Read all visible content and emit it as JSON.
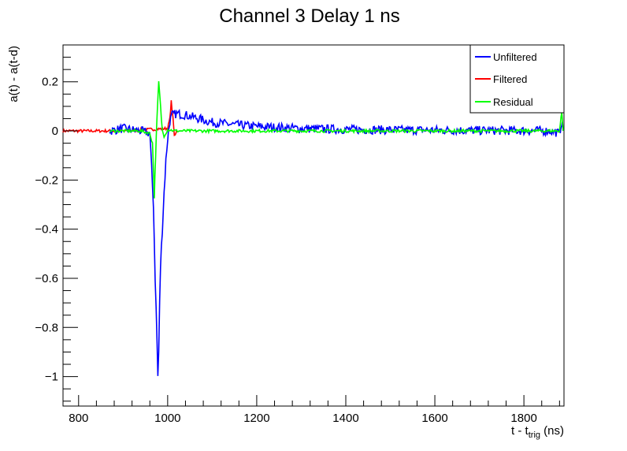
{
  "colors": {
    "unfiltered": "#0000ff",
    "filtered": "#ff0000",
    "residual": "#00ff00",
    "axis": "#000000",
    "background": "#ffffff"
  },
  "chart_data": {
    "type": "line",
    "title": "Channel 3 Delay 1 ns",
    "ylabel": "a(t) - a(t-d)",
    "xlabel_main": "t - t",
    "xlabel_sub": "trig",
    "xlabel_unit": " (ns)",
    "xlim": [
      765,
      1890
    ],
    "ylim": [
      -1.12,
      0.35
    ],
    "grid": false,
    "legend_position": "top-right",
    "x_ticks": [
      800,
      1000,
      1200,
      1400,
      1600,
      1800
    ],
    "x_tick_labels": [
      "800",
      "1000",
      "1200",
      "1400",
      "1600",
      "1800"
    ],
    "y_ticks": [
      0.2,
      0,
      -0.2,
      -0.4,
      -0.6,
      -0.8,
      -1
    ],
    "y_tick_labels": [
      "0.2",
      "0",
      "−0.2",
      "−0.4",
      "−0.6",
      "−0.8",
      "−1"
    ],
    "series": [
      {
        "name": "Unfiltered",
        "color": "#0000ff",
        "x": [
          870,
          900,
          940,
          960,
          968,
          972,
          976,
          978,
          980,
          982,
          984,
          988,
          992,
          996,
          1000,
          1005,
          1010,
          1020,
          1040,
          1060,
          1080,
          1100,
          1150,
          1200,
          1300,
          1400,
          1500,
          1600,
          1700,
          1800,
          1860,
          1880,
          1885,
          1888
        ],
        "y": [
          0.0,
          0.01,
          0.0,
          -0.01,
          -0.3,
          -0.6,
          -0.85,
          -1.0,
          -0.9,
          -0.7,
          -0.55,
          -0.4,
          -0.25,
          -0.12,
          -0.03,
          0.04,
          0.065,
          0.07,
          0.065,
          0.055,
          0.045,
          0.035,
          0.025,
          0.018,
          0.01,
          0.006,
          0.004,
          0.003,
          0.002,
          0.001,
          0.0,
          -0.01,
          0.04,
          0.0
        ]
      },
      {
        "name": "Filtered",
        "color": "#ff0000",
        "x": [
          765,
          800,
          850,
          900,
          950,
          1000,
          1005,
          1008,
          1012,
          1015,
          1020
        ],
        "y": [
          0.0,
          0.0,
          0.0,
          0.0,
          0.005,
          0.01,
          0.05,
          0.12,
          0.05,
          -0.02,
          0.0
        ]
      },
      {
        "name": "Residual",
        "color": "#00ff00",
        "x": [
          870,
          940,
          960,
          966,
          970,
          973,
          976,
          980,
          984,
          988,
          992,
          1000,
          1020,
          1100,
          1200,
          1400,
          1600,
          1800,
          1880,
          1885,
          1888
        ],
        "y": [
          0.0,
          0.0,
          -0.01,
          -0.05,
          -0.27,
          -0.1,
          0.05,
          0.2,
          0.1,
          0.0,
          -0.02,
          0.005,
          0.0,
          0.0,
          0.0,
          0.0,
          0.0,
          0.0,
          0.0,
          0.08,
          0.0
        ]
      }
    ]
  }
}
